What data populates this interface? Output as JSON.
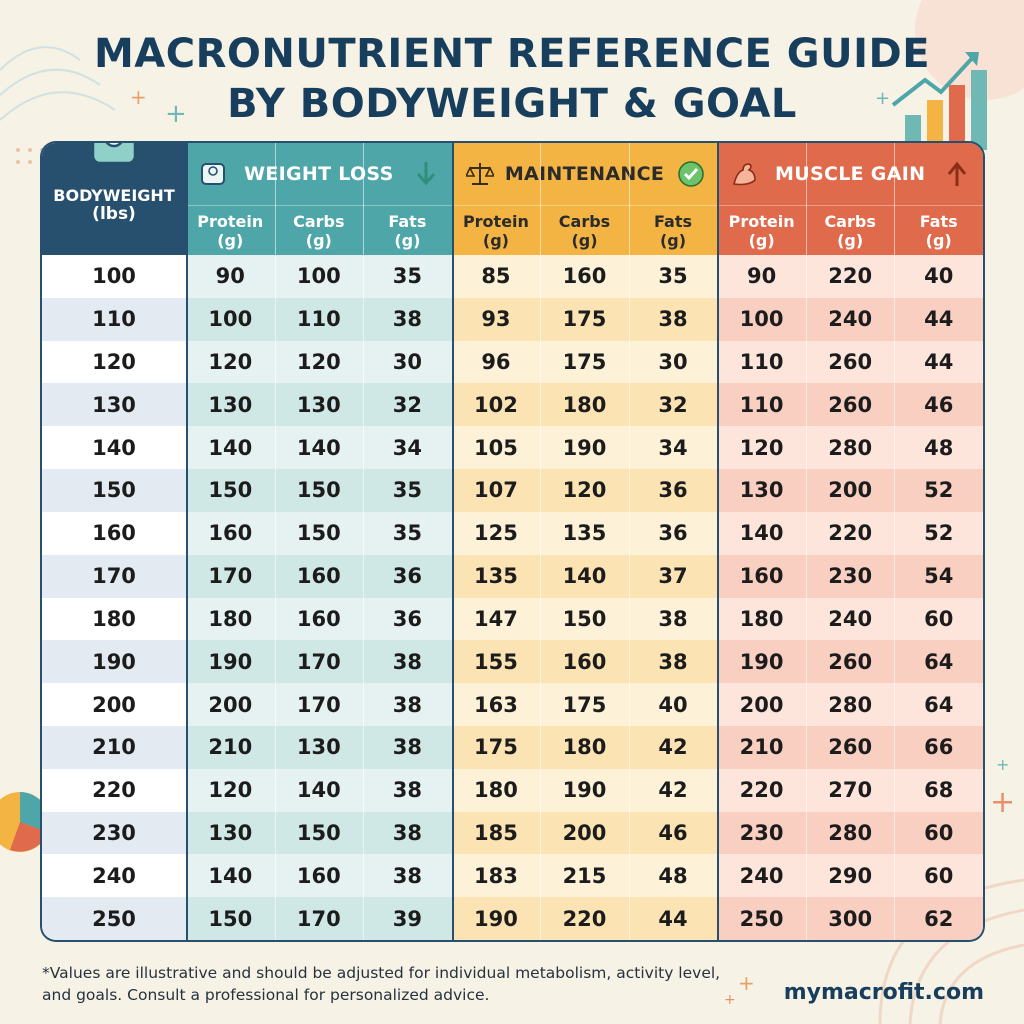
{
  "title_line1": "MACRONUTRIENT REFERENCE GUIDE",
  "title_line2": "BY BODYWEIGHT & GOAL",
  "bodyweight_header": "BODYWEIGHT\n(lbs)",
  "groups": [
    {
      "label": "WEIGHT LOSS",
      "icon": "scale-icon",
      "status_icon": "down-arrow-icon"
    },
    {
      "label": "MAINTENANCE",
      "icon": "balance-scale-icon",
      "status_icon": "check-icon"
    },
    {
      "label": "MUSCLE GAIN",
      "icon": "flexed-arm-icon",
      "status_icon": "up-arrow-icon"
    }
  ],
  "subheaders": [
    "Protein\n(g)",
    "Carbs\n(g)",
    "Fats\n(g)"
  ],
  "rows": [
    [
      "100",
      "90",
      "100",
      "35",
      "85",
      "160",
      "35",
      "90",
      "220",
      "40"
    ],
    [
      "110",
      "100",
      "110",
      "38",
      "93",
      "175",
      "38",
      "100",
      "240",
      "44"
    ],
    [
      "120",
      "120",
      "120",
      "30",
      "96",
      "175",
      "30",
      "110",
      "260",
      "44"
    ],
    [
      "130",
      "130",
      "130",
      "32",
      "102",
      "180",
      "32",
      "110",
      "260",
      "46"
    ],
    [
      "140",
      "140",
      "140",
      "34",
      "105",
      "190",
      "34",
      "120",
      "280",
      "48"
    ],
    [
      "150",
      "150",
      "150",
      "35",
      "107",
      "120",
      "36",
      "130",
      "200",
      "52"
    ],
    [
      "160",
      "160",
      "150",
      "35",
      "125",
      "135",
      "36",
      "140",
      "220",
      "52"
    ],
    [
      "170",
      "170",
      "160",
      "36",
      "135",
      "140",
      "37",
      "160",
      "230",
      "54"
    ],
    [
      "180",
      "180",
      "160",
      "36",
      "147",
      "150",
      "38",
      "180",
      "240",
      "60"
    ],
    [
      "190",
      "190",
      "170",
      "38",
      "155",
      "160",
      "38",
      "190",
      "260",
      "64"
    ],
    [
      "200",
      "200",
      "170",
      "38",
      "163",
      "175",
      "40",
      "200",
      "280",
      "64"
    ],
    [
      "210",
      "210",
      "130",
      "38",
      "175",
      "180",
      "42",
      "210",
      "260",
      "66"
    ],
    [
      "220",
      "120",
      "140",
      "38",
      "180",
      "190",
      "42",
      "220",
      "270",
      "68"
    ],
    [
      "230",
      "130",
      "150",
      "38",
      "185",
      "200",
      "46",
      "230",
      "280",
      "60"
    ],
    [
      "240",
      "140",
      "160",
      "38",
      "183",
      "215",
      "48",
      "240",
      "290",
      "60"
    ],
    [
      "250",
      "150",
      "170",
      "39",
      "190",
      "220",
      "44",
      "250",
      "300",
      "62"
    ]
  ],
  "footnote": "*Values are illustrative and should be adjusted for individual metabolism, activity level, and goals. Consult a professional for personalized advice.",
  "brand": "mymacrofit.com",
  "colors": {
    "navy": "#27506e",
    "teal_header": "#4fa6a8",
    "teal_row_light": "#e6f2f1",
    "teal_row_dark": "#cfe7e5",
    "amber_header": "#f3b443",
    "amber_row_light": "#fdf1d8",
    "amber_row_dark": "#fbe3b3",
    "coral_header": "#e06a4c",
    "coral_row_light": "#fde5dc",
    "coral_row_dark": "#f9cfc2",
    "bw_row_light": "#ffffff",
    "bw_row_dark": "#e3eaf2"
  }
}
